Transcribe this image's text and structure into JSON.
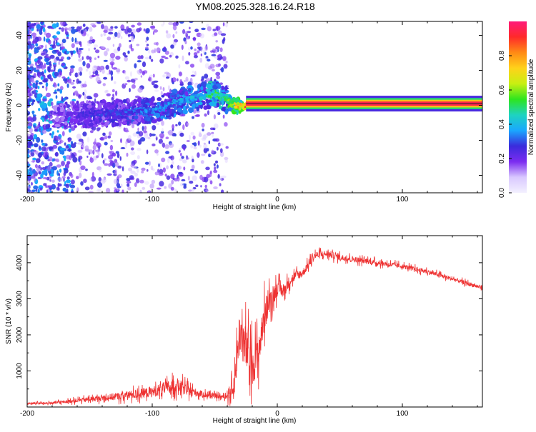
{
  "title": "YM08.2025.328.16.24.R18",
  "colors": {
    "snr_line": "#ee3333",
    "colorbar_stops": [
      "#f3f0ff",
      "#d9c8ff",
      "#7b2cf0",
      "#3a2bdc",
      "#1aa7ff",
      "#1ed3c0",
      "#2ee51e",
      "#c8ef12",
      "#ffd21a",
      "#ff8a15",
      "#ff2a2a",
      "#ff1a7a"
    ]
  },
  "chart_data": [
    {
      "type": "heatmap",
      "title": "YM08.2025.328.16.24.R18",
      "xlabel": "Height of straight line (km)",
      "ylabel": "Frequency (Hz)",
      "xlim": [
        -200,
        164
      ],
      "ylim": [
        -50,
        48
      ],
      "xticks": [
        -200,
        -100,
        0,
        100
      ],
      "xtick_labels": [
        "-200",
        "-100",
        "0",
        "100"
      ],
      "yticks": [
        -40,
        -20,
        0,
        20,
        40
      ],
      "ytick_labels": [
        "-40",
        "-20",
        "0",
        "20",
        "40"
      ],
      "ridge": {
        "x": [
          -175,
          -150,
          -125,
          -100,
          -80,
          -60,
          -50,
          -42,
          -35,
          -28,
          -20,
          -10,
          0,
          164
        ],
        "freq": [
          -6,
          -5,
          -4,
          -3,
          2,
          5,
          7,
          4,
          0,
          -1,
          0,
          0.5,
          1,
          1
        ],
        "amplitude": [
          0.2,
          0.22,
          0.25,
          0.3,
          0.32,
          0.35,
          0.45,
          0.4,
          0.6,
          0.7,
          0.8,
          0.9,
          0.95,
          0.95
        ]
      },
      "colorbar": {
        "label": "Normalized spectral amplitude",
        "range": [
          0,
          1
        ],
        "ticks": [
          0.0,
          0.2,
          0.4,
          0.6,
          0.8
        ],
        "tick_labels": [
          "0.0",
          "0.2",
          "0.4",
          "0.6",
          "0.8"
        ]
      }
    },
    {
      "type": "line",
      "title": "",
      "xlabel": "Height of straight line (km)",
      "ylabel": "SNR (10 * v/v)",
      "xlim": [
        -200,
        164
      ],
      "ylim": [
        0,
        4750
      ],
      "xticks": [
        -200,
        -100,
        0,
        100
      ],
      "xtick_labels": [
        "-200",
        "-100",
        "0",
        "100"
      ],
      "yticks": [
        1000,
        2000,
        3000,
        4000
      ],
      "ytick_labels": [
        "1000",
        "2000",
        "3000",
        "4000"
      ],
      "series": [
        {
          "name": "SNR",
          "x": [
            -200,
            -180,
            -160,
            -140,
            -120,
            -100,
            -90,
            -80,
            -70,
            -60,
            -50,
            -42,
            -35,
            -30,
            -25,
            -20,
            -15,
            -10,
            -5,
            0,
            5,
            10,
            15,
            20,
            25,
            30,
            40,
            50,
            60,
            80,
            100,
            120,
            140,
            164
          ],
          "values": [
            100,
            110,
            180,
            250,
            320,
            420,
            520,
            600,
            450,
            350,
            300,
            280,
            500,
            2100,
            1600,
            1200,
            1500,
            2600,
            3000,
            3300,
            3200,
            3500,
            3650,
            3700,
            3950,
            4200,
            4250,
            4150,
            4100,
            4000,
            3900,
            3750,
            3550,
            3300
          ],
          "noise": [
            60,
            70,
            120,
            180,
            260,
            330,
            400,
            450,
            300,
            200,
            150,
            120,
            700,
            1500,
            1400,
            1300,
            1100,
            1000,
            700,
            500,
            400,
            350,
            300,
            250,
            250,
            250,
            220,
            200,
            180,
            160,
            150,
            140,
            130,
            120
          ]
        }
      ]
    }
  ]
}
